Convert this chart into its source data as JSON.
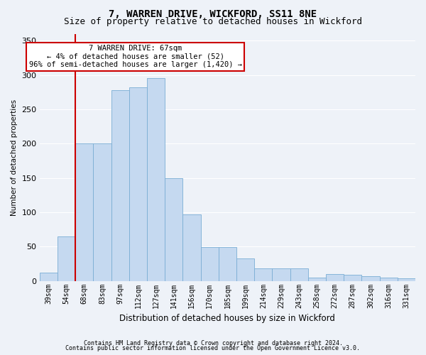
{
  "title": "7, WARREN DRIVE, WICKFORD, SS11 8NE",
  "subtitle": "Size of property relative to detached houses in Wickford",
  "xlabel": "Distribution of detached houses by size in Wickford",
  "ylabel": "Number of detached properties",
  "categories": [
    "39sqm",
    "54sqm",
    "68sqm",
    "83sqm",
    "97sqm",
    "112sqm",
    "127sqm",
    "141sqm",
    "156sqm",
    "170sqm",
    "185sqm",
    "199sqm",
    "214sqm",
    "229sqm",
    "243sqm",
    "258sqm",
    "272sqm",
    "287sqm",
    "302sqm",
    "316sqm",
    "331sqm"
  ],
  "values": [
    12,
    65,
    200,
    200,
    278,
    282,
    295,
    150,
    97,
    49,
    49,
    33,
    18,
    18,
    18,
    5,
    10,
    9,
    7,
    5,
    4
  ],
  "bar_color": "#c5d9f0",
  "bar_edge_color": "#7aadd4",
  "highlight_line_color": "#cc0000",
  "highlight_bar_index": 2,
  "annotation_text": "7 WARREN DRIVE: 67sqm\n← 4% of detached houses are smaller (52)\n96% of semi-detached houses are larger (1,420) →",
  "annotation_box_facecolor": "#ffffff",
  "annotation_box_edgecolor": "#cc0000",
  "footer_line1": "Contains HM Land Registry data © Crown copyright and database right 2024.",
  "footer_line2": "Contains public sector information licensed under the Open Government Licence v3.0.",
  "ylim": [
    0,
    360
  ],
  "yticks": [
    0,
    50,
    100,
    150,
    200,
    250,
    300,
    350
  ],
  "background_color": "#eef2f8",
  "grid_color": "#ffffff",
  "title_fontsize": 10,
  "subtitle_fontsize": 9,
  "tick_fontsize": 7,
  "ylabel_fontsize": 7.5,
  "xlabel_fontsize": 8.5,
  "footer_fontsize": 6,
  "annot_fontsize": 7.5
}
